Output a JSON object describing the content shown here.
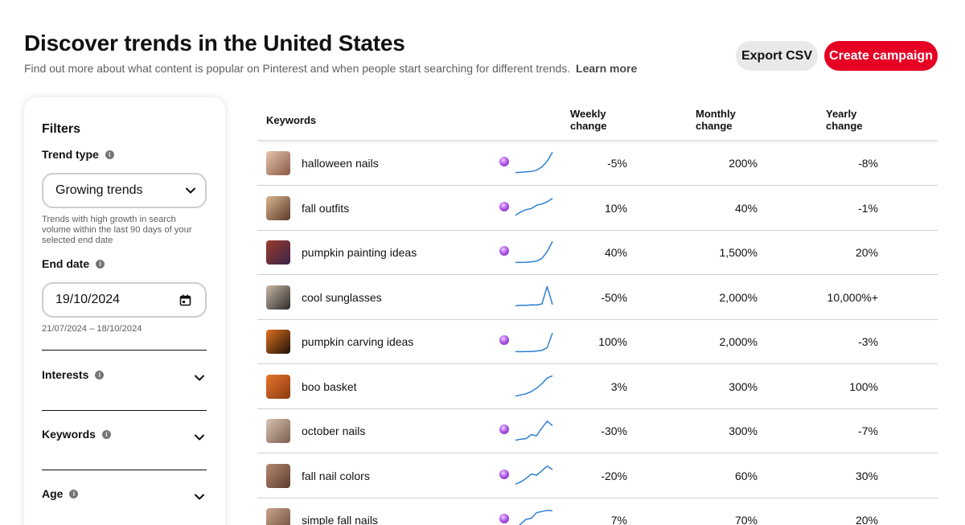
{
  "header": {
    "title": "Discover trends in the United States",
    "subtitle": "Find out more about what content is popular on Pinterest and when people start searching for different trends.",
    "learn_more": "Learn more",
    "export_label": "Export CSV",
    "create_label": "Create campaign"
  },
  "filters": {
    "title": "Filters",
    "trend_type": {
      "label": "Trend type",
      "value": "Growing trends",
      "hint": "Trends with high growth in search volume within the last 90 days of your selected end date"
    },
    "end_date": {
      "label": "End date",
      "value": "19/10/2024",
      "range": "21/07/2024 – 18/10/2024"
    },
    "sections": [
      {
        "label": "Interests"
      },
      {
        "label": "Keywords"
      },
      {
        "label": "Age"
      }
    ]
  },
  "table": {
    "columns": {
      "keywords": "Keywords",
      "weekly_1": "Weekly",
      "weekly_2": "change",
      "monthly_1": "Monthly",
      "monthly_2": "change",
      "yearly_1": "Yearly",
      "yearly_2": "change"
    },
    "rows": [
      {
        "keyword": "halloween nails",
        "weekly": "-5%",
        "monthly": "200%",
        "yearly": "-8%",
        "badge": true,
        "thumb": [
          "#e6c4ad",
          "#8a5a44"
        ],
        "trend": [
          0.05,
          0.06,
          0.08,
          0.1,
          0.15,
          0.3,
          0.55,
          0.95
        ]
      },
      {
        "keyword": "fall outfits",
        "weekly": "10%",
        "monthly": "40%",
        "yearly": "-1%",
        "badge": true,
        "thumb": [
          "#d8b58f",
          "#5b3b2a"
        ],
        "trend": [
          0.15,
          0.3,
          0.4,
          0.45,
          0.6,
          0.65,
          0.75,
          0.9
        ]
      },
      {
        "keyword": "pumpkin painting ideas",
        "weekly": "40%",
        "monthly": "1,500%",
        "yearly": "20%",
        "badge": true,
        "thumb": [
          "#9b3b2a",
          "#3a2448"
        ],
        "trend": [
          0.02,
          0.02,
          0.03,
          0.05,
          0.08,
          0.2,
          0.5,
          0.95
        ]
      },
      {
        "keyword": "cool sunglasses",
        "weekly": "-50%",
        "monthly": "2,000%",
        "yearly": "10,000%+",
        "badge": false,
        "thumb": [
          "#c9b6a4",
          "#2b2b2b"
        ],
        "trend": [
          0.1,
          0.12,
          0.11,
          0.14,
          0.13,
          0.18,
          0.95,
          0.15
        ]
      },
      {
        "keyword": "pumpkin carving ideas",
        "weekly": "100%",
        "monthly": "2,000%",
        "yearly": "-3%",
        "badge": true,
        "thumb": [
          "#e07020",
          "#1d1208"
        ],
        "trend": [
          0.02,
          0.02,
          0.03,
          0.03,
          0.05,
          0.08,
          0.2,
          0.85
        ]
      },
      {
        "keyword": "boo basket",
        "weekly": "3%",
        "monthly": "300%",
        "yearly": "100%",
        "badge": false,
        "thumb": [
          "#e8742a",
          "#8a3a12"
        ],
        "trend": [
          0.05,
          0.1,
          0.15,
          0.25,
          0.4,
          0.6,
          0.85,
          0.95
        ]
      },
      {
        "keyword": "october nails",
        "weekly": "-30%",
        "monthly": "300%",
        "yearly": "-7%",
        "badge": true,
        "thumb": [
          "#d9c3b2",
          "#7a5d4c"
        ],
        "trend": [
          0.05,
          0.1,
          0.12,
          0.3,
          0.25,
          0.6,
          0.9,
          0.7
        ]
      },
      {
        "keyword": "fall nail colors",
        "weekly": "-20%",
        "monthly": "60%",
        "yearly": "30%",
        "badge": true,
        "thumb": [
          "#b48a72",
          "#5c3a2c"
        ],
        "trend": [
          0.1,
          0.2,
          0.35,
          0.55,
          0.5,
          0.7,
          0.9,
          0.75
        ]
      },
      {
        "keyword": "simple fall nails",
        "weekly": "7%",
        "monthly": "70%",
        "yearly": "20%",
        "badge": true,
        "thumb": [
          "#c9a58c",
          "#6b4b3a"
        ],
        "trend": [
          0.1,
          0.3,
          0.5,
          0.55,
          0.8,
          0.85,
          0.9,
          0.88
        ]
      }
    ]
  },
  "colors": {
    "accent": "#e60023",
    "sparkline": "#2f80d1",
    "badge": "#9b3fd6"
  }
}
